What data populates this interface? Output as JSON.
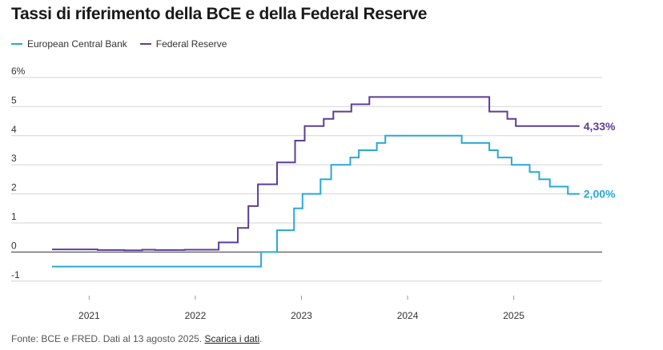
{
  "chart_data": {
    "type": "line",
    "title": "Tassi di riferimento della BCE e della Federal Reserve",
    "y_unit_label": "6%",
    "yticks": [
      "-1",
      "0",
      "1",
      "2",
      "3",
      "4",
      "5",
      "6%"
    ],
    "ylim": [
      -1.5,
      6
    ],
    "xlim": [
      2020.65,
      2025.75
    ],
    "xticks": [
      {
        "label": "2021",
        "value": 2021.0
      },
      {
        "label": "2022",
        "value": 2022.0
      },
      {
        "label": "2023",
        "value": 2023.0
      },
      {
        "label": "2024",
        "value": 2024.0
      },
      {
        "label": "2025",
        "value": 2025.0
      }
    ],
    "series": [
      {
        "name": "European Central Bank",
        "color": "#29a9d6",
        "end_label": "2,00%",
        "points": [
          [
            2020.65,
            -0.5
          ],
          [
            2022.62,
            -0.5
          ],
          [
            2022.62,
            0.0
          ],
          [
            2022.77,
            0.0
          ],
          [
            2022.77,
            0.75
          ],
          [
            2022.93,
            0.75
          ],
          [
            2022.93,
            1.5
          ],
          [
            2023.01,
            1.5
          ],
          [
            2023.01,
            2.0
          ],
          [
            2023.18,
            2.0
          ],
          [
            2023.18,
            2.5
          ],
          [
            2023.28,
            2.5
          ],
          [
            2023.28,
            3.0
          ],
          [
            2023.46,
            3.0
          ],
          [
            2023.46,
            3.25
          ],
          [
            2023.54,
            3.25
          ],
          [
            2023.54,
            3.5
          ],
          [
            2023.71,
            3.5
          ],
          [
            2023.71,
            3.75
          ],
          [
            2023.79,
            3.75
          ],
          [
            2023.79,
            4.0
          ],
          [
            2024.51,
            4.0
          ],
          [
            2024.51,
            3.75
          ],
          [
            2024.77,
            3.75
          ],
          [
            2024.77,
            3.5
          ],
          [
            2024.85,
            3.5
          ],
          [
            2024.85,
            3.25
          ],
          [
            2024.98,
            3.25
          ],
          [
            2024.98,
            3.0
          ],
          [
            2025.15,
            3.0
          ],
          [
            2025.15,
            2.75
          ],
          [
            2025.24,
            2.75
          ],
          [
            2025.24,
            2.5
          ],
          [
            2025.34,
            2.5
          ],
          [
            2025.34,
            2.25
          ],
          [
            2025.51,
            2.25
          ],
          [
            2025.51,
            2.0
          ],
          [
            2025.62,
            2.0
          ]
        ]
      },
      {
        "name": "Federal Reserve",
        "color": "#5b3f96",
        "end_label": "4,33%",
        "points": [
          [
            2020.65,
            0.09
          ],
          [
            2021.08,
            0.09
          ],
          [
            2021.08,
            0.07
          ],
          [
            2021.33,
            0.07
          ],
          [
            2021.33,
            0.06
          ],
          [
            2021.5,
            0.06
          ],
          [
            2021.5,
            0.08
          ],
          [
            2021.62,
            0.08
          ],
          [
            2021.62,
            0.07
          ],
          [
            2021.9,
            0.07
          ],
          [
            2021.9,
            0.08
          ],
          [
            2022.22,
            0.08
          ],
          [
            2022.22,
            0.33
          ],
          [
            2022.4,
            0.33
          ],
          [
            2022.4,
            0.83
          ],
          [
            2022.5,
            0.83
          ],
          [
            2022.5,
            1.58
          ],
          [
            2022.59,
            1.58
          ],
          [
            2022.59,
            2.33
          ],
          [
            2022.77,
            2.33
          ],
          [
            2022.77,
            3.08
          ],
          [
            2022.94,
            3.08
          ],
          [
            2022.94,
            3.83
          ],
          [
            2023.03,
            3.83
          ],
          [
            2023.03,
            4.33
          ],
          [
            2023.21,
            4.33
          ],
          [
            2023.21,
            4.58
          ],
          [
            2023.3,
            4.58
          ],
          [
            2023.3,
            4.83
          ],
          [
            2023.47,
            4.83
          ],
          [
            2023.47,
            5.08
          ],
          [
            2023.64,
            5.08
          ],
          [
            2023.64,
            5.33
          ],
          [
            2024.77,
            5.33
          ],
          [
            2024.77,
            4.83
          ],
          [
            2024.94,
            4.83
          ],
          [
            2024.94,
            4.58
          ],
          [
            2025.02,
            4.58
          ],
          [
            2025.02,
            4.33
          ],
          [
            2025.62,
            4.33
          ]
        ]
      }
    ]
  },
  "footer": {
    "source": "Fonte: BCE e FRED. Dati al 13 agosto 2025. ",
    "link": "Scarica i dati",
    "end": "."
  }
}
